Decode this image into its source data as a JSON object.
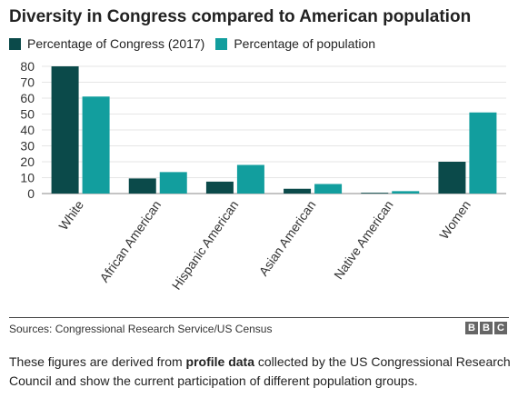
{
  "colors": {
    "congress": "#0b4a4a",
    "population": "#129e9e",
    "grid": "#e6e6e6",
    "axis": "#888888"
  },
  "header": {
    "title": "Diversity in Congress compared to American population"
  },
  "footer": {
    "source": "Sources: Congressional Research Service/US Census",
    "logo_letters": [
      "B",
      "B",
      "C"
    ],
    "note_before": "These figures are derived from ",
    "note_link": "profile data",
    "note_after": " collected by the US Congressional Research Council and show the current participation of different population groups."
  },
  "chart_data": {
    "type": "bar",
    "title": "Diversity in Congress compared to American population",
    "xlabel": "",
    "ylabel": "",
    "ylim": [
      0,
      80
    ],
    "yticks": [
      0,
      10,
      20,
      30,
      40,
      50,
      60,
      70,
      80
    ],
    "grid": true,
    "legend_position": "top-left",
    "categories": [
      "White",
      "African American",
      "Hispanic American",
      "Asian American",
      "Native American",
      "Women"
    ],
    "series": [
      {
        "name": "Percentage of Congress (2017)",
        "values": [
          80,
          9.5,
          7.5,
          3,
          0.5,
          20
        ]
      },
      {
        "name": "Percentage of population",
        "values": [
          61,
          13.5,
          18,
          6,
          1.5,
          51
        ]
      }
    ]
  }
}
